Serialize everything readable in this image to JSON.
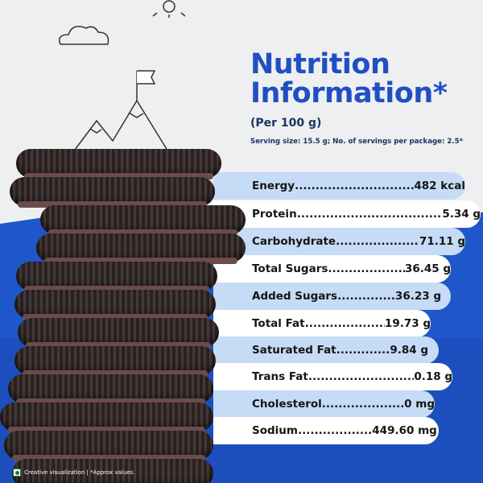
{
  "title_line1": "Nutrition",
  "title_line2": "Information*",
  "per": "(Per 100 g)",
  "serving": "Serving size: 15.5 g; No. of servings per package: 2.5*",
  "rows": [
    {
      "label": "Energy",
      "dots": "................................",
      "value": "482 kcal"
    },
    {
      "label": "Protein",
      "dots": "...........................................",
      "value": "5.34 g"
    },
    {
      "label": "Carbohydrate",
      "dots": "........................",
      "value": "71.11 g"
    },
    {
      "label": "Total Sugars",
      "dots": "...................",
      "value": "36.45 g"
    },
    {
      "label": "Added Sugars",
      "dots": "..............",
      "value": "36.23 g"
    },
    {
      "label": "Total Fat",
      "dots": ".....................",
      "value": "19.73 g"
    },
    {
      "label": "Saturated Fat",
      "dots": ".............",
      "value": "9.84 g"
    },
    {
      "label": "Trans Fat",
      "dots": "...............................",
      "value": "0.18 g"
    },
    {
      "label": "Cholesterol",
      "dots": "....................",
      "value": "0 mg"
    },
    {
      "label": "Sodium",
      "dots": "..................",
      "value": "449.60 mg"
    }
  ],
  "footer": "Creative visualization | *Approx values.",
  "colors": {
    "title": "#1f4fc3",
    "pill_blue": "#c6dbf6",
    "pill_white": "#ffffff",
    "background_blue": "#1f56c9"
  }
}
